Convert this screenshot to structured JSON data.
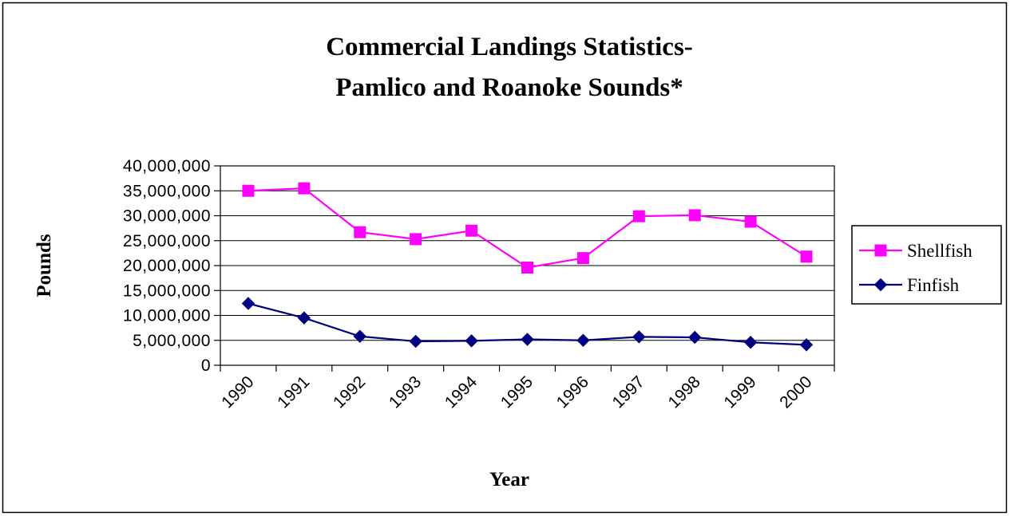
{
  "chart_data": {
    "type": "line",
    "title": [
      "Commercial Landings Statistics-",
      "Pamlico and Roanoke Sounds*"
    ],
    "xlabel": "Year",
    "ylabel": "Pounds",
    "categories": [
      "1990",
      "1991",
      "1992",
      "1993",
      "1994",
      "1995",
      "1996",
      "1997",
      "1998",
      "1999",
      "2000"
    ],
    "ylim": [
      0,
      40000000
    ],
    "yticks": [
      {
        "value": 0,
        "label": "0"
      },
      {
        "value": 5000000,
        "label": "5,000,000"
      },
      {
        "value": 10000000,
        "label": "10,000,000"
      },
      {
        "value": 15000000,
        "label": "15,000,000"
      },
      {
        "value": 20000000,
        "label": "20,000,000"
      },
      {
        "value": 25000000,
        "label": "25,000,000"
      },
      {
        "value": 30000000,
        "label": "30,000,000"
      },
      {
        "value": 35000000,
        "label": "35,000,000"
      },
      {
        "value": 40000000,
        "label": "40,000,000"
      }
    ],
    "grid": "horizontal",
    "legend_position": "right",
    "series": [
      {
        "name": "Shellfish",
        "color": "#ff00ff",
        "marker": "square",
        "values": [
          35000000,
          35500000,
          26700000,
          25300000,
          27000000,
          19600000,
          21500000,
          29900000,
          30100000,
          28800000,
          21800000
        ]
      },
      {
        "name": "Finfish",
        "color": "#000080",
        "marker": "diamond",
        "values": [
          12400000,
          9500000,
          5800000,
          4800000,
          4900000,
          5200000,
          5000000,
          5700000,
          5600000,
          4600000,
          4100000
        ]
      }
    ]
  }
}
